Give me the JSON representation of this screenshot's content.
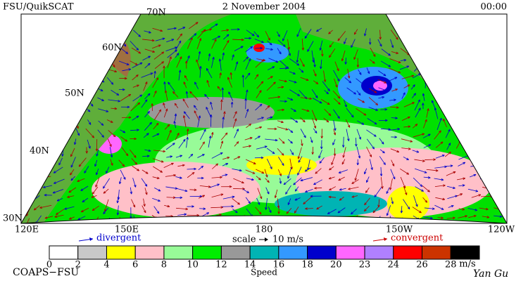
{
  "header": {
    "title": "FSU/QuikSCAT",
    "date": "2 November 2004",
    "time": "00:00"
  },
  "map": {
    "lat_labels": [
      "70N",
      "60N",
      "50N",
      "40N",
      "30N"
    ],
    "lon_labels": [
      "120E",
      "150E",
      "180",
      "150W",
      "120W"
    ]
  },
  "legend": {
    "divergent": "divergent",
    "scale": "scale",
    "scale_value": "10 m/s",
    "convergent": "convergent"
  },
  "colorbar": {
    "ticks": [
      "0",
      "2",
      "4",
      "6",
      "8",
      "10",
      "12",
      "14",
      "16",
      "18",
      "20",
      "23",
      "24",
      "26",
      "28"
    ],
    "colors": [
      "#ffffff",
      "#c8c8c8",
      "#ffff00",
      "#ffc0c8",
      "#98fb98",
      "#00ee00",
      "#999999",
      "#00b4b4",
      "#3399ff",
      "#0000cc",
      "#ff66ff",
      "#b080ff",
      "#ff0000",
      "#cc3300",
      "#000000"
    ],
    "unit": "m/s",
    "label": "Speed"
  },
  "footer": {
    "left": "COAPS−FSU",
    "right": "Yan Gu"
  }
}
